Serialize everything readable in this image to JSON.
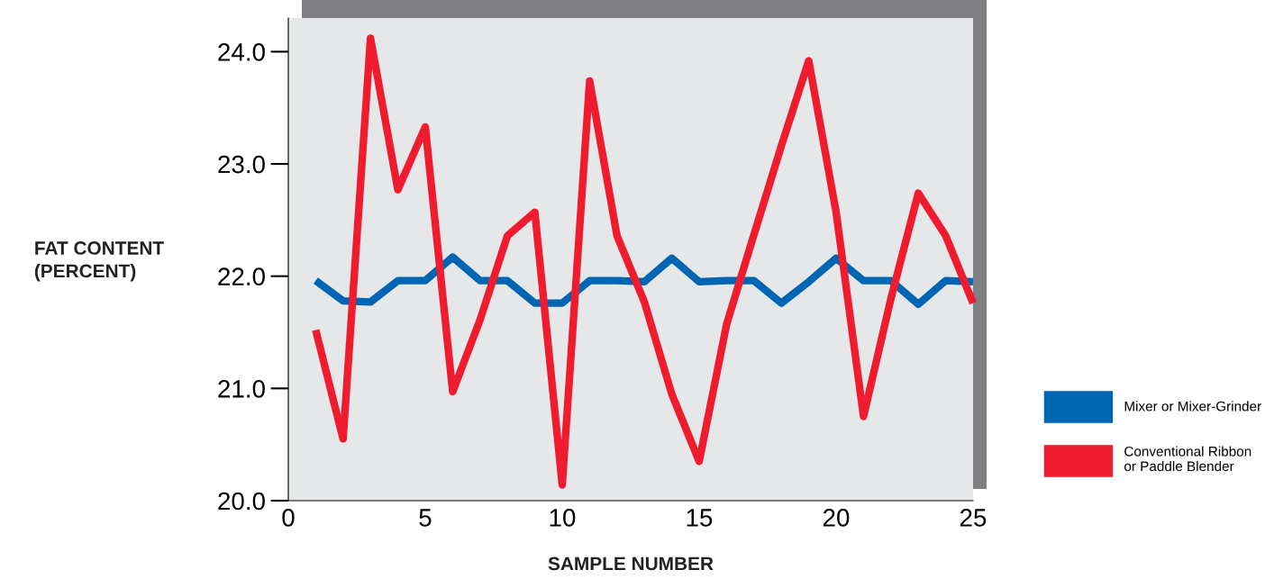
{
  "chart_data": {
    "type": "line",
    "xlabel": "SAMPLE NUMBER",
    "ylabel": "FAT CONTENT\n(PERCENT)",
    "x": [
      1,
      2,
      3,
      4,
      5,
      6,
      7,
      8,
      9,
      10,
      11,
      12,
      13,
      14,
      15,
      16,
      17,
      18,
      19,
      20,
      21,
      22,
      23,
      24,
      25
    ],
    "series": [
      {
        "name": "Mixer or Mixer-Grinder",
        "color": "#0066b3",
        "values": [
          21.96,
          21.78,
          21.77,
          21.96,
          21.96,
          22.17,
          21.96,
          21.96,
          21.76,
          21.76,
          21.96,
          21.96,
          21.95,
          22.16,
          21.95,
          21.96,
          21.96,
          21.76,
          21.95,
          22.16,
          21.96,
          21.96,
          21.75,
          21.96,
          21.95
        ]
      },
      {
        "name": "Conventional Ribbon\nor Paddle Blender",
        "color": "#ee1c2e",
        "values": [
          21.52,
          20.55,
          24.12,
          22.77,
          23.33,
          20.97,
          21.61,
          22.36,
          22.57,
          20.14,
          23.74,
          22.36,
          21.77,
          20.95,
          20.35,
          21.57,
          22.37,
          23.16,
          23.92,
          22.57,
          20.75,
          21.8,
          22.74,
          22.36,
          21.76
        ]
      }
    ],
    "xlim": [
      0,
      25
    ],
    "xticks": [
      0,
      5,
      10,
      15,
      20,
      25
    ],
    "ylim": [
      20,
      24.3
    ],
    "yticks": [
      {
        "value": 20,
        "label": "20.0"
      },
      {
        "value": 21,
        "label": "21.0"
      },
      {
        "value": 22,
        "label": "22.0"
      },
      {
        "value": 23,
        "label": "23.0"
      },
      {
        "value": 24,
        "label": "24.0"
      }
    ],
    "grid": false,
    "legend": "right",
    "marker": "none",
    "line_style": "solid"
  }
}
